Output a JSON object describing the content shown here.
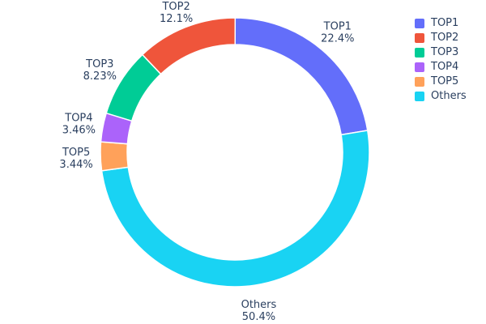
{
  "chart_data": {
    "type": "pie",
    "subtype": "donut",
    "title": "",
    "categories": [
      "TOP1",
      "TOP2",
      "TOP3",
      "TOP4",
      "TOP5",
      "Others"
    ],
    "values": [
      22.4,
      12.1,
      8.23,
      3.46,
      3.44,
      50.4
    ],
    "labels": [
      "22.4%",
      "12.1%",
      "8.23%",
      "3.46%",
      "3.44%",
      "50.4%"
    ],
    "colors": [
      "#636EFA",
      "#EF553B",
      "#00CC96",
      "#AB63FA",
      "#FFA15A",
      "#19D3F3"
    ],
    "hole": 0.8,
    "start_angle_deg": -90,
    "direction": "clockwise",
    "draw_order": [
      0,
      5,
      4,
      3,
      2,
      1
    ],
    "legend_position": "top-right",
    "label_position": "outside",
    "text_color": "#2a3f5f",
    "background": "#ffffff"
  }
}
